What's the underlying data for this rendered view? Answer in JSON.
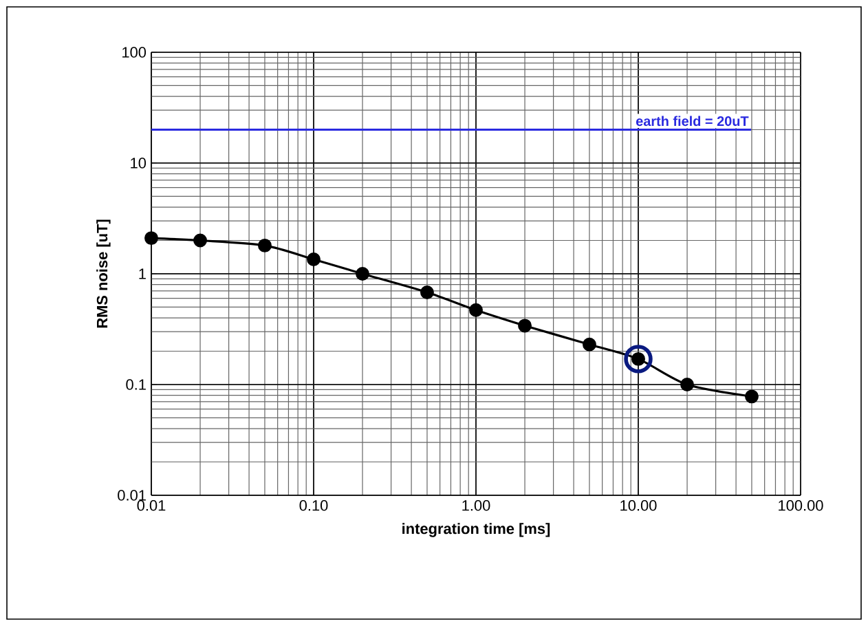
{
  "chart_data": {
    "type": "line",
    "xlabel": "integration time [ms]",
    "ylabel": "RMS noise [uT]",
    "x": [
      0.01,
      0.02,
      0.05,
      0.1,
      0.2,
      0.5,
      1,
      2,
      5,
      10,
      20,
      50
    ],
    "series": [
      {
        "color": "#000000",
        "marker": "circle",
        "line_style": "solid",
        "values": [
          2.1,
          2.0,
          1.8,
          1.35,
          1.0,
          0.68,
          0.47,
          0.34,
          0.23,
          0.17,
          0.1,
          0.078
        ]
      },
      {
        "type": "scatter",
        "color": "#0a1a80",
        "marker": "circle",
        "x": [
          10
        ],
        "values": [
          0.17
        ]
      }
    ],
    "log": "xy",
    "grid": true,
    "xlim": [
      0.01,
      100
    ],
    "ylim": [
      0.01,
      100
    ],
    "xticks": [
      0.01,
      {
        "value": 0.1,
        "label": "0.10"
      },
      {
        "value": 1,
        "label": "1.00"
      },
      {
        "value": 10,
        "label": "10.00"
      },
      {
        "value": 100,
        "label": "100.00"
      }
    ],
    "yticks": [
      0.01,
      0.1,
      1,
      10,
      100
    ],
    "ref_lines": [
      {
        "axis": "y",
        "value": 20,
        "label": "earth field = 20uT",
        "color": "#2a2ae0"
      }
    ]
  }
}
